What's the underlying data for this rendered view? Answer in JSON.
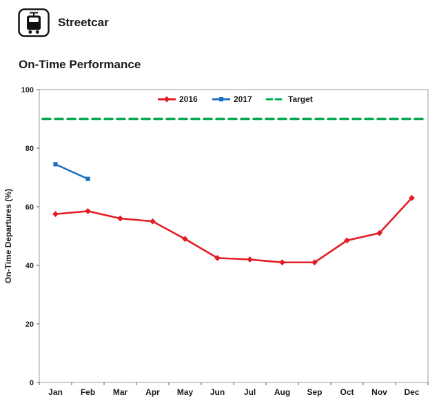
{
  "header": {
    "app_name": "Streetcar",
    "icon": "streetcar-icon"
  },
  "chart_data": {
    "type": "line",
    "title": "On-Time Performance",
    "ylabel": "On-Time Departures (%)",
    "xlabel": "",
    "ylim": [
      0,
      100
    ],
    "yticks": [
      0,
      20,
      40,
      60,
      80,
      100
    ],
    "grid": false,
    "legend_position": "top-center-inside",
    "categories": [
      "Jan",
      "Feb",
      "Mar",
      "Apr",
      "May",
      "Jun",
      "Jul",
      "Aug",
      "Sep",
      "Oct",
      "Nov",
      "Dec"
    ],
    "series": [
      {
        "name": "2016",
        "color": "#e31b23",
        "marker": "diamond",
        "values": [
          57.5,
          58.5,
          56,
          55,
          49,
          42.5,
          42,
          41,
          41,
          48.5,
          51,
          63
        ]
      },
      {
        "name": "2017",
        "color": "#1f6fbf",
        "marker": "square",
        "values": [
          74.5,
          69.5,
          null,
          null,
          null,
          null,
          null,
          null,
          null,
          null,
          null,
          null
        ]
      }
    ],
    "target": {
      "name": "Target",
      "color": "#00a650",
      "value": 90,
      "style": "dashed"
    }
  }
}
